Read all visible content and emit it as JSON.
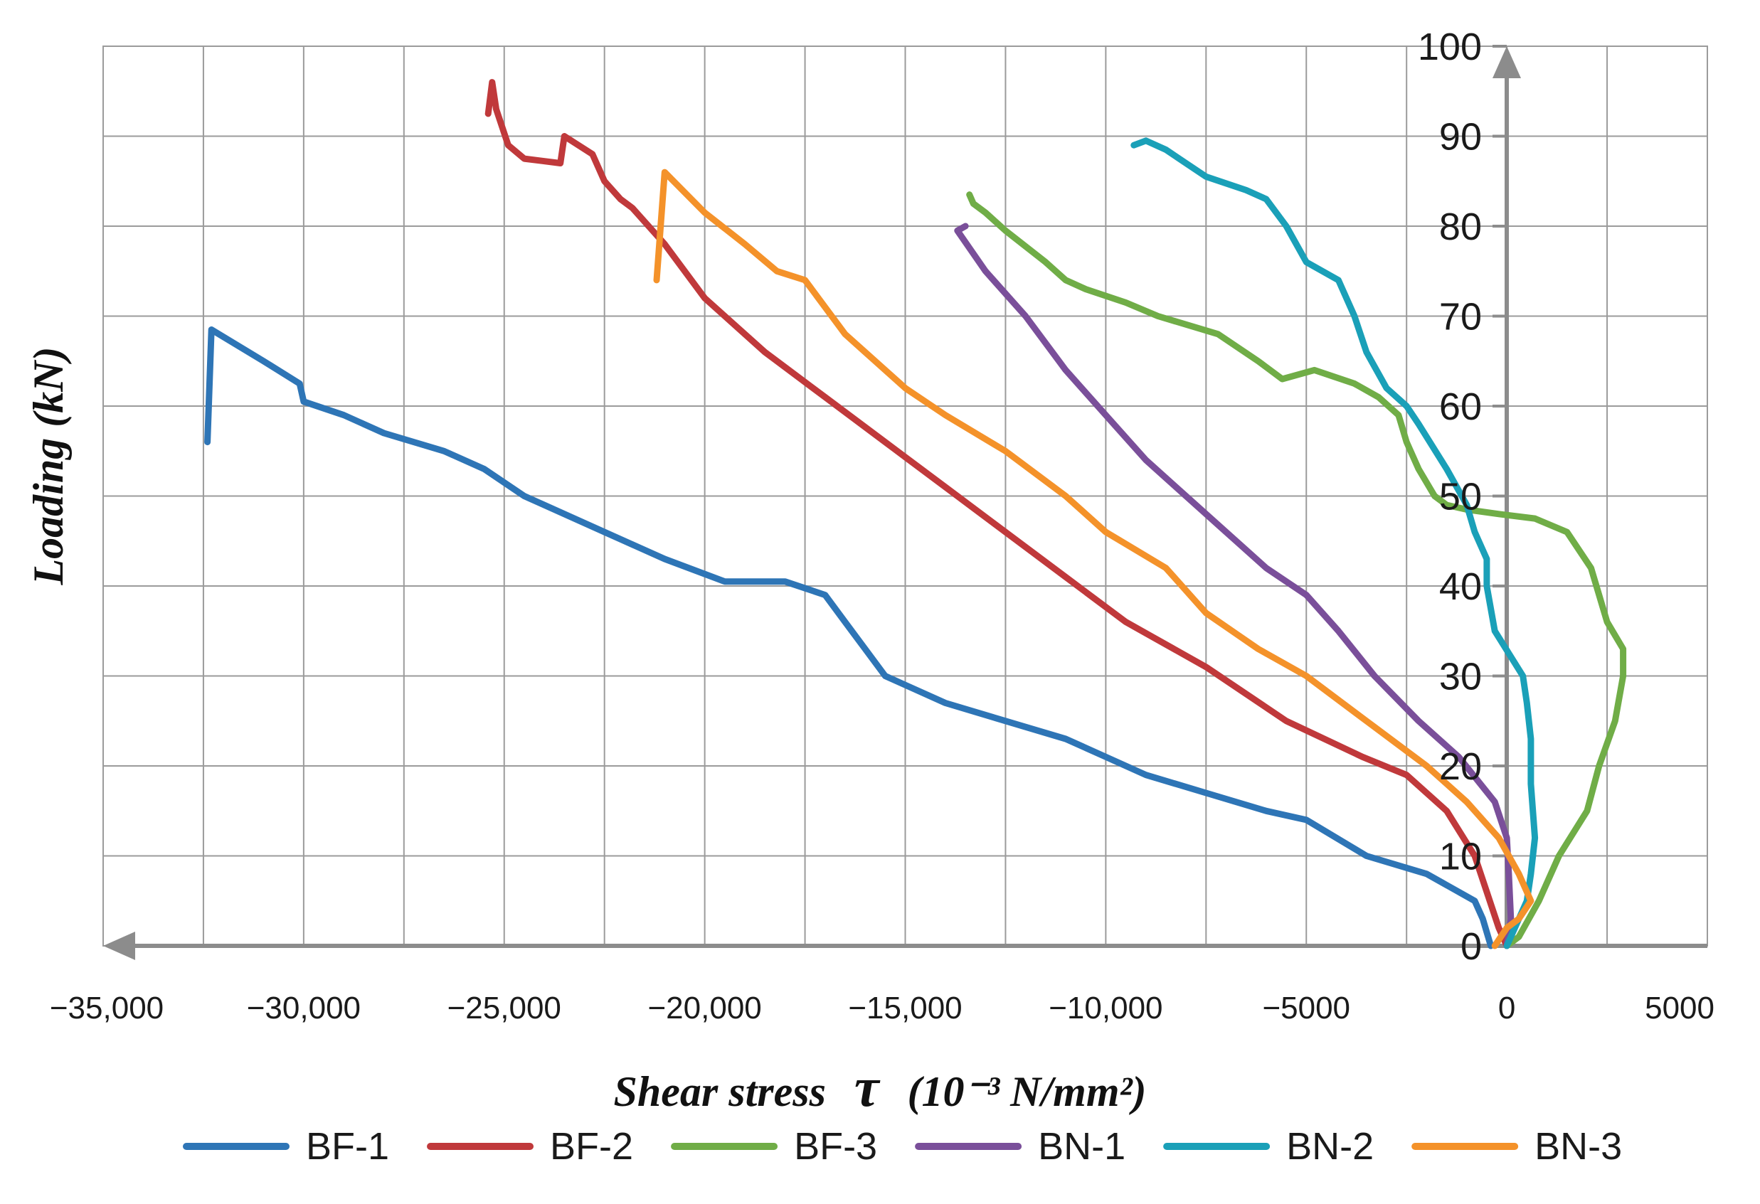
{
  "chart_data": {
    "type": "line",
    "title": "",
    "xlabel": "Shear stress",
    "xlabel_symbol": "τ",
    "xlabel_units": "(10⁻³ N/mm²)",
    "ylabel": "Loading (kN)",
    "xlim": [
      -35000,
      5000
    ],
    "ylim": [
      0,
      100
    ],
    "x_ticks": [
      {
        "value": -35000,
        "label": "−35,000"
      },
      {
        "value": -30000,
        "label": "−30,000"
      },
      {
        "value": -25000,
        "label": "−25,000"
      },
      {
        "value": -20000,
        "label": "−20,000"
      },
      {
        "value": -15000,
        "label": "−15,000"
      },
      {
        "value": -10000,
        "label": "−10,000"
      },
      {
        "value": -5000,
        "label": "−5000"
      },
      {
        "value": 0,
        "label": "0"
      },
      {
        "value": 5000,
        "label": "5000"
      }
    ],
    "y_ticks": [
      {
        "value": 0,
        "label": "0"
      },
      {
        "value": 10,
        "label": "10"
      },
      {
        "value": 20,
        "label": "20"
      },
      {
        "value": 30,
        "label": "30"
      },
      {
        "value": 40,
        "label": "40"
      },
      {
        "value": 50,
        "label": "50"
      },
      {
        "value": 60,
        "label": "60"
      },
      {
        "value": 70,
        "label": "70"
      },
      {
        "value": 80,
        "label": "80"
      },
      {
        "value": 90,
        "label": "90"
      },
      {
        "value": 100,
        "label": "100"
      }
    ],
    "grid": true,
    "legend_position": "bottom",
    "series": [
      {
        "name": "BF-1",
        "color": "#2e75b6",
        "points": [
          [
            -400,
            0
          ],
          [
            -600,
            3
          ],
          [
            -800,
            5
          ],
          [
            -2000,
            8
          ],
          [
            -3500,
            10
          ],
          [
            -5000,
            14
          ],
          [
            -6000,
            15
          ],
          [
            -7500,
            17
          ],
          [
            -9000,
            19
          ],
          [
            -10000,
            21
          ],
          [
            -11000,
            23
          ],
          [
            -12500,
            25
          ],
          [
            -14000,
            27
          ],
          [
            -15000,
            29
          ],
          [
            -15500,
            30
          ],
          [
            -16000,
            33
          ],
          [
            -16500,
            36
          ],
          [
            -17000,
            39
          ],
          [
            -18000,
            40.5
          ],
          [
            -19500,
            40.5
          ],
          [
            -21000,
            43
          ],
          [
            -22500,
            46
          ],
          [
            -24000,
            49
          ],
          [
            -24500,
            50
          ],
          [
            -25500,
            53
          ],
          [
            -26500,
            55
          ],
          [
            -28000,
            57
          ],
          [
            -29000,
            59
          ],
          [
            -30000,
            60.5
          ],
          [
            -30100,
            62.5
          ],
          [
            -31000,
            65
          ],
          [
            -32300,
            68.5
          ],
          [
            -32400,
            56
          ]
        ]
      },
      {
        "name": "BF-2",
        "color": "#c0393b",
        "points": [
          [
            0,
            0
          ],
          [
            -200,
            2
          ],
          [
            -500,
            6
          ],
          [
            -800,
            10
          ],
          [
            -1500,
            15
          ],
          [
            -2500,
            19
          ],
          [
            -3600,
            21
          ],
          [
            -5500,
            25
          ],
          [
            -7500,
            31
          ],
          [
            -9500,
            36
          ],
          [
            -11000,
            41
          ],
          [
            -12500,
            46
          ],
          [
            -14000,
            51
          ],
          [
            -15500,
            56
          ],
          [
            -17000,
            61
          ],
          [
            -18500,
            66
          ],
          [
            -20000,
            72
          ],
          [
            -21000,
            78
          ],
          [
            -21800,
            82
          ],
          [
            -22100,
            83
          ],
          [
            -22500,
            85
          ],
          [
            -22800,
            88
          ],
          [
            -23500,
            90
          ],
          [
            -23600,
            87
          ],
          [
            -24500,
            87.5
          ],
          [
            -24900,
            89
          ],
          [
            -25200,
            93
          ],
          [
            -25300,
            96
          ],
          [
            -25400,
            92.5
          ]
        ]
      },
      {
        "name": "BF-3",
        "color": "#70ad47",
        "points": [
          [
            0,
            0
          ],
          [
            300,
            1
          ],
          [
            800,
            5
          ],
          [
            1300,
            10
          ],
          [
            2000,
            15
          ],
          [
            2300,
            20
          ],
          [
            2700,
            25
          ],
          [
            2900,
            30
          ],
          [
            2900,
            33
          ],
          [
            2500,
            36
          ],
          [
            2100,
            42
          ],
          [
            1500,
            46
          ],
          [
            700,
            47.5
          ],
          [
            -200,
            48
          ],
          [
            -1000,
            48.5
          ],
          [
            -1500,
            49
          ],
          [
            -1800,
            50
          ],
          [
            -2200,
            53
          ],
          [
            -2500,
            56
          ],
          [
            -2700,
            59
          ],
          [
            -3200,
            61
          ],
          [
            -3800,
            62.5
          ],
          [
            -4800,
            64
          ],
          [
            -5600,
            63
          ],
          [
            -6200,
            65
          ],
          [
            -7200,
            68
          ],
          [
            -8700,
            70
          ],
          [
            -9500,
            71.5
          ],
          [
            -10500,
            73
          ],
          [
            -11000,
            74
          ],
          [
            -11500,
            76
          ],
          [
            -12500,
            79.5
          ],
          [
            -13000,
            81.5
          ],
          [
            -13300,
            82.5
          ],
          [
            -13400,
            83.5
          ]
        ]
      },
      {
        "name": "BN-1",
        "color": "#7a4f9a",
        "points": [
          [
            0,
            0
          ],
          [
            100,
            3
          ],
          [
            50,
            8
          ],
          [
            0,
            12
          ],
          [
            -300,
            16
          ],
          [
            -1200,
            21
          ],
          [
            -2200,
            25
          ],
          [
            -3300,
            30
          ],
          [
            -4200,
            35
          ],
          [
            -5000,
            39
          ],
          [
            -6000,
            42
          ],
          [
            -7000,
            46
          ],
          [
            -8000,
            50
          ],
          [
            -9000,
            54
          ],
          [
            -10000,
            59
          ],
          [
            -11000,
            64
          ],
          [
            -12000,
            70
          ],
          [
            -13000,
            75
          ],
          [
            -13700,
            79.5
          ],
          [
            -13500,
            80
          ]
        ]
      },
      {
        "name": "BN-2",
        "color": "#1aa0b8",
        "points": [
          [
            0,
            0
          ],
          [
            200,
            2
          ],
          [
            500,
            5
          ],
          [
            600,
            8
          ],
          [
            700,
            12
          ],
          [
            600,
            18
          ],
          [
            600,
            23
          ],
          [
            500,
            27
          ],
          [
            400,
            30
          ],
          [
            -300,
            35
          ],
          [
            -500,
            40
          ],
          [
            -500,
            43
          ],
          [
            -800,
            46
          ],
          [
            -1000,
            49
          ],
          [
            -1500,
            53
          ],
          [
            -2200,
            58
          ],
          [
            -2500,
            60
          ],
          [
            -3000,
            62
          ],
          [
            -3500,
            66
          ],
          [
            -3800,
            70
          ],
          [
            -4200,
            74
          ],
          [
            -5000,
            76
          ],
          [
            -5500,
            80
          ],
          [
            -6000,
            83
          ],
          [
            -6500,
            84
          ],
          [
            -7500,
            85.5
          ],
          [
            -8000,
            87
          ],
          [
            -8500,
            88.5
          ],
          [
            -9000,
            89.5
          ],
          [
            -9300,
            89
          ]
        ]
      },
      {
        "name": "BN-3",
        "color": "#f4922a",
        "points": [
          [
            -300,
            0
          ],
          [
            0,
            2
          ],
          [
            300,
            3
          ],
          [
            600,
            5
          ],
          [
            300,
            8
          ],
          [
            -200,
            12
          ],
          [
            -1000,
            16
          ],
          [
            -2000,
            20
          ],
          [
            -3500,
            25
          ],
          [
            -5000,
            30
          ],
          [
            -6200,
            33
          ],
          [
            -7500,
            37
          ],
          [
            -8500,
            42
          ],
          [
            -10000,
            46
          ],
          [
            -11000,
            50
          ],
          [
            -12500,
            55
          ],
          [
            -14000,
            59
          ],
          [
            -15000,
            62
          ],
          [
            -16000,
            66
          ],
          [
            -16500,
            68
          ],
          [
            -17000,
            71
          ],
          [
            -17500,
            74
          ],
          [
            -18200,
            75
          ],
          [
            -19000,
            78
          ],
          [
            -20000,
            81.5
          ],
          [
            -21000,
            86
          ],
          [
            -21200,
            74
          ]
        ]
      }
    ]
  }
}
